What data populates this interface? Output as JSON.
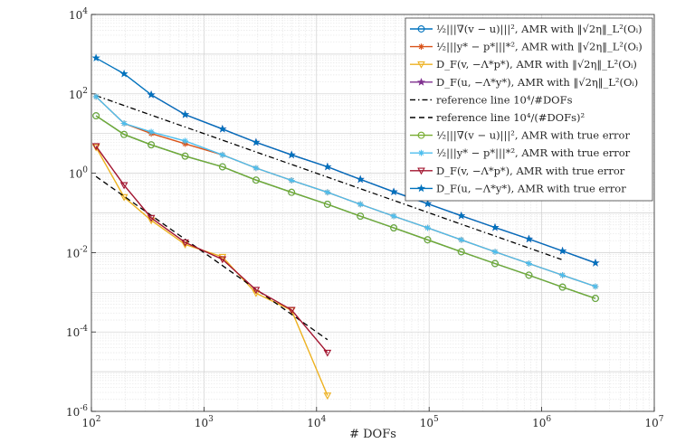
{
  "chart_data": {
    "type": "line",
    "xscale": "log",
    "yscale": "log",
    "xlim": [
      100,
      10000000
    ],
    "ylim": [
      1e-06,
      10000
    ],
    "xlabel": "# DOFs",
    "ylabel": "",
    "grid": true,
    "legend_position": "top-right",
    "x_ticks": [
      {
        "base": "10",
        "exp": "2"
      },
      {
        "base": "10",
        "exp": "3"
      },
      {
        "base": "10",
        "exp": "4"
      },
      {
        "base": "10",
        "exp": "5"
      },
      {
        "base": "10",
        "exp": "6"
      },
      {
        "base": "10",
        "exp": "7"
      }
    ],
    "y_ticks": [
      {
        "base": "10",
        "exp": "-6"
      },
      {
        "base": "10",
        "exp": "-4"
      },
      {
        "base": "10",
        "exp": "-2"
      },
      {
        "base": "10",
        "exp": "0"
      },
      {
        "base": "10",
        "exp": "2"
      },
      {
        "base": "10",
        "exp": "4"
      }
    ],
    "series": [
      {
        "name": "½|||∇(v − u)|||², AMR with ‖√2η‖_L²(Oᵢ)",
        "color": "#0072BD",
        "marker": "circle",
        "x": [
          110,
          195,
          340,
          680,
          1460,
          2900,
          6000,
          12500,
          24500,
          48500,
          97000,
          193000,
          385000,
          770000,
          1530000,
          3000000
        ],
        "y": [
          28,
          9.5,
          5.2,
          2.7,
          1.45,
          0.67,
          0.33,
          0.165,
          0.083,
          0.042,
          0.021,
          0.0105,
          0.0053,
          0.0027,
          0.00135,
          0.0007
        ]
      },
      {
        "name": "½|||y* − p*|||*², AMR with ‖√2η‖_L²(Oᵢ)",
        "color": "#D95319",
        "marker": "asterisk",
        "x": [
          110,
          195,
          340,
          680,
          1460,
          2900,
          6000,
          12500,
          24500,
          48500,
          97000,
          193000,
          385000,
          770000,
          1530000,
          3000000
        ],
        "y": [
          85,
          18,
          10,
          5.5,
          2.9,
          1.35,
          0.66,
          0.33,
          0.165,
          0.083,
          0.042,
          0.021,
          0.0105,
          0.0053,
          0.0027,
          0.0014
        ]
      },
      {
        "name": "D_F(v, −Λ*p*), AMR with ‖√2η‖_L²(Oᵢ)",
        "color": "#EDB120",
        "marker": "triangle-down",
        "x": [
          110,
          195,
          340,
          680,
          1460,
          2900,
          6000,
          12500
        ],
        "y": [
          4.5,
          0.25,
          0.065,
          0.016,
          0.0078,
          0.00095,
          0.00035,
          2.5e-06
        ]
      },
      {
        "name": "D_F(u, −Λ*y*), AMR with ‖√2η‖_L²(Oᵢ)",
        "color": "#7E2F8E",
        "marker": "star",
        "x": [
          340,
          680,
          1460,
          2900,
          6000,
          12500,
          24500,
          48500,
          97000,
          193000,
          385000,
          770000,
          1530000,
          3000000
        ],
        "y": [
          95,
          30,
          13,
          6,
          2.9,
          1.45,
          0.7,
          0.34,
          0.17,
          0.085,
          0.043,
          0.022,
          0.011,
          0.0055
        ]
      },
      {
        "name": "reference line 10⁴/#DOFs",
        "color": "#000000",
        "dash": "dashdot",
        "x": [
          110,
          1500000
        ],
        "y": [
          90,
          0.0067
        ]
      },
      {
        "name": "reference line 10⁴/(#DOFs)²",
        "color": "#000000",
        "dash": "dashed",
        "x": [
          110,
          12500
        ],
        "y": [
          0.83,
          6.4e-05
        ]
      },
      {
        "name": "½|||∇(v − u)|||², AMR with true error",
        "color": "#77AC30",
        "marker": "circle",
        "x": [
          110,
          195,
          340,
          680,
          1460,
          2900,
          6000,
          12500,
          24500,
          48500,
          97000,
          193000,
          385000,
          770000,
          1530000,
          3000000
        ],
        "y": [
          28,
          9.5,
          5.2,
          2.7,
          1.45,
          0.67,
          0.33,
          0.165,
          0.083,
          0.042,
          0.021,
          0.0105,
          0.0053,
          0.0027,
          0.00135,
          0.0007
        ]
      },
      {
        "name": "½|||y* − p*|||*², AMR with true error",
        "color": "#4DBEEE",
        "marker": "asterisk",
        "x": [
          110,
          195,
          340,
          680,
          1460,
          2900,
          6000,
          12500,
          24500,
          48500,
          97000,
          193000,
          385000,
          770000,
          1530000,
          3000000
        ],
        "y": [
          85,
          18,
          11,
          6.5,
          2.9,
          1.35,
          0.66,
          0.33,
          0.165,
          0.083,
          0.042,
          0.021,
          0.0105,
          0.0053,
          0.0027,
          0.0014
        ]
      },
      {
        "name": "D_F(v, −Λ*p*), AMR with true error",
        "color": "#A2142F",
        "marker": "triangle-down",
        "x": [
          110,
          195,
          340,
          680,
          1460,
          2900,
          6000,
          12500
        ],
        "y": [
          4.8,
          0.5,
          0.075,
          0.018,
          0.0068,
          0.00115,
          0.00036,
          3e-05
        ]
      },
      {
        "name": "D_F(u, −Λ*y*), AMR with true error",
        "color": "#0072BD",
        "marker": "star",
        "x": [
          110,
          195,
          340,
          680,
          1460,
          2900,
          6000,
          12500,
          24500,
          48500,
          97000,
          193000,
          385000,
          770000,
          1530000,
          3000000
        ],
        "y": [
          800,
          320,
          95,
          30,
          13,
          6,
          2.9,
          1.45,
          0.7,
          0.34,
          0.17,
          0.085,
          0.043,
          0.022,
          0.011,
          0.0055
        ]
      }
    ]
  }
}
